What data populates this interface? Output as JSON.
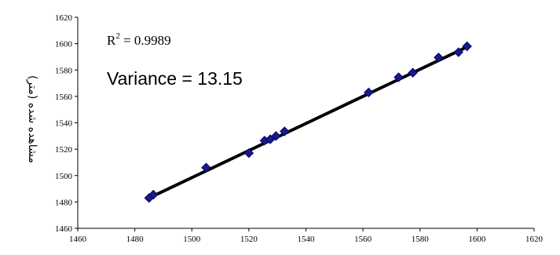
{
  "chart_data": {
    "type": "scatter",
    "title": "",
    "xlabel": "",
    "ylabel": "مشاهده شده (متر)",
    "xlim": [
      1460,
      1620
    ],
    "ylim": [
      1460,
      1620
    ],
    "x_ticks": [
      "1460",
      "1480",
      "1500",
      "1520",
      "1540",
      "1560",
      "1580",
      "1600",
      "1620"
    ],
    "y_ticks": [
      "1460",
      "1480",
      "1500",
      "1520",
      "1540",
      "1560",
      "1580",
      "1600",
      "1620"
    ],
    "grid": false,
    "legend": "none",
    "annotations": {
      "r2_prefix": "R",
      "r2_sup": "2",
      "r2_value": " = 0.9989",
      "variance": "Variance = 13.15"
    },
    "trendline": {
      "from": [
        1485,
        1483
      ],
      "to": [
        1597,
        1598
      ]
    },
    "series": [
      {
        "points": [
          [
            1485,
            1483
          ],
          [
            1486.5,
            1485.5
          ],
          [
            1505,
            1506
          ],
          [
            1520,
            1517
          ],
          [
            1525.5,
            1526.5
          ],
          [
            1527.5,
            1527.5
          ],
          [
            1529.5,
            1530
          ],
          [
            1532.5,
            1533.5
          ],
          [
            1562,
            1563
          ],
          [
            1572.5,
            1574.5
          ],
          [
            1577.5,
            1578
          ],
          [
            1586.5,
            1589.5
          ],
          [
            1593.5,
            1593.5
          ],
          [
            1596.5,
            1598
          ]
        ]
      }
    ],
    "colors": {
      "marker": "#1a1a80",
      "marker_stroke": "#000080",
      "trendline": "#000000",
      "axis": "#000000"
    }
  }
}
